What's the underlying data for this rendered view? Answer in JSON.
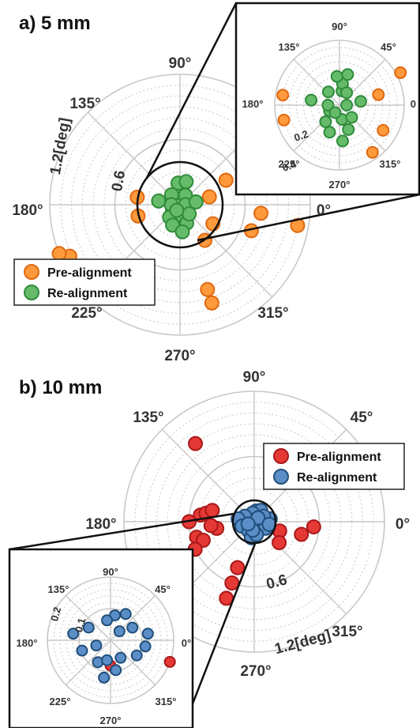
{
  "panels": [
    {
      "title": "a) 5 mm",
      "angle_labels": [
        "90°",
        "135°",
        "180°",
        "225°",
        "270°",
        "315°",
        "0°"
      ],
      "radial_labels": [
        "0.6",
        "1.2[deg]"
      ],
      "inset_angle_labels": [
        "90°",
        "45°",
        "135°",
        "180°",
        "225°",
        "270°",
        "315°",
        "0"
      ],
      "inset_radial_labels": [
        "0.2",
        "0.4"
      ],
      "legend": [
        "Pre-alignment",
        "Re-alignment"
      ]
    },
    {
      "title": "b) 10 mm",
      "angle_labels": [
        "90°",
        "45°",
        "135°",
        "180°",
        "0°",
        "315°",
        "270°"
      ],
      "radial_labels": [
        "0.6",
        "1.2[deg]"
      ],
      "inset_angle_labels": [
        "90°",
        "135°",
        "45°",
        "180°",
        "0°",
        "225°",
        "315°",
        "270°"
      ],
      "inset_radial_labels": [
        "0.1",
        "0.2"
      ],
      "legend": [
        "Pre-alignment",
        "Re-alignment"
      ]
    }
  ],
  "colors": {
    "a_pre_fill": "#ff9a3c",
    "a_pre_edge": "#e06810",
    "a_re_fill": "#66bb6a",
    "a_re_edge": "#2e8b3a",
    "b_pre_fill": "#e53935",
    "b_pre_edge": "#a81818",
    "b_re_fill": "#5b8dc6",
    "b_re_edge": "#1f4e7a",
    "grid": "#c8c8c8"
  },
  "chart_data": [
    {
      "type": "scatter",
      "coordinate_system": "polar",
      "title": "a) 5 mm",
      "r_unit": "deg",
      "r_max": 1.2,
      "grid": true,
      "legend_placement": "bottom-left",
      "series": [
        {
          "name": "Pre-alignment",
          "points": [
            [
              1.0,
              47
            ],
            [
              1.05,
              42
            ],
            [
              1.1,
              -10
            ],
            [
              0.75,
              -6
            ],
            [
              0.7,
              -20
            ],
            [
              0.28,
              15
            ],
            [
              0.4,
              170
            ],
            [
              0.4,
              195
            ],
            [
              0.48,
              28
            ],
            [
              0.35,
              -30
            ],
            [
              1.12,
              205
            ],
            [
              1.2,
              202
            ],
            [
              0.82,
              -72
            ],
            [
              0.95,
              -72
            ],
            [
              0.4,
              -55
            ]
          ]
        },
        {
          "name": "Re-alignment",
          "points": [
            [
              0.1,
              80
            ],
            [
              0.15,
              82
            ],
            [
              0.2,
              95
            ],
            [
              0.22,
              75
            ],
            [
              0.1,
              60
            ],
            [
              0.12,
              130
            ],
            [
              0.08,
              210
            ],
            [
              0.15,
              230
            ],
            [
              0.2,
              250
            ],
            [
              0.1,
              -80
            ],
            [
              0.18,
              -70
            ],
            [
              0.25,
              -85
            ],
            [
              0.05,
              0
            ],
            [
              0.15,
              10
            ],
            [
              0.08,
              180
            ],
            [
              0.2,
              170
            ],
            [
              0.12,
              -45
            ],
            [
              0.06,
              -120
            ]
          ]
        }
      ]
    },
    {
      "type": "scatter",
      "coordinate_system": "polar",
      "title": "b) 10 mm",
      "r_unit": "deg",
      "r_max": 1.2,
      "grid": true,
      "legend_placement": "top-right",
      "series": [
        {
          "name": "Pre-alignment",
          "points": [
            [
              0.9,
              127
            ],
            [
              0.5,
              173
            ],
            [
              0.45,
              170
            ],
            [
              0.4,
              165
            ],
            [
              0.6,
              180
            ],
            [
              0.25,
              -20
            ],
            [
              0.45,
              -15
            ],
            [
              0.55,
              -5
            ],
            [
              0.55,
              195
            ],
            [
              0.5,
              200
            ],
            [
              0.6,
              205
            ],
            [
              0.45,
              -110
            ],
            [
              0.6,
              -110
            ],
            [
              0.75,
              -110
            ],
            [
              0.1,
              -90
            ],
            [
              0.35,
              190
            ],
            [
              0.4,
              185
            ],
            [
              0.3,
              -40
            ]
          ]
        },
        {
          "name": "Re-alignment",
          "points": [
            [
              0.1,
              80
            ],
            [
              0.12,
              60
            ],
            [
              0.08,
              100
            ],
            [
              0.1,
              150
            ],
            [
              0.15,
              170
            ],
            [
              0.12,
              200
            ],
            [
              0.1,
              240
            ],
            [
              0.15,
              260
            ],
            [
              0.08,
              -60
            ],
            [
              0.12,
              -30
            ],
            [
              0.15,
              10
            ],
            [
              0.1,
              30
            ],
            [
              0.05,
              45
            ],
            [
              0.12,
              -80
            ],
            [
              0.08,
              -100
            ],
            [
              0.14,
              -10
            ],
            [
              0.06,
              200
            ]
          ]
        }
      ]
    }
  ]
}
